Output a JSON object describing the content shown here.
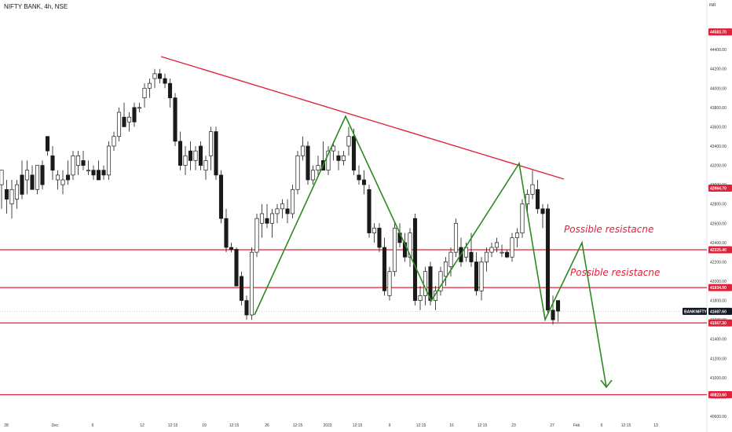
{
  "header": {
    "symbol_title": "NIFTY BANK, 4h, NSE",
    "currency": "INR"
  },
  "colors": {
    "resistance": "#e0213a",
    "pattern": "#2b8a1e",
    "down_candle": "#1a1a1a",
    "up_candle": "#ffffff"
  },
  "chart_data": {
    "type": "candlestick",
    "ylim": [
      40600,
      44800
    ],
    "y_ticks": [
      40600,
      40800,
      41000,
      41200,
      41400,
      41600,
      41800,
      42000,
      42200,
      42400,
      42600,
      42800,
      43000,
      43200,
      43400,
      43600,
      43800,
      44000,
      44200,
      44400,
      44600
    ],
    "x_ticks": [
      "28",
      "Dec",
      "6",
      "12",
      "12:15",
      "19",
      "12:15",
      "26",
      "12:15",
      "2023",
      "12:15",
      "9",
      "12:15",
      "16",
      "12:15",
      "23",
      "27",
      "Feb",
      "6",
      "12:15",
      "13"
    ],
    "level_tags": [
      {
        "label": "44583.70",
        "value": 44583.7
      },
      {
        "label": "42964.70",
        "value": 42964.7
      },
      {
        "label": "42325.40",
        "value": 42325.4
      },
      {
        "label": "41934.00",
        "value": 41934.0
      },
      {
        "label": "41567.30",
        "value": 41567.3
      },
      {
        "label": "40823.60",
        "value": 40823.6
      }
    ],
    "last_price": {
      "symbol": "BANKNIFTY",
      "label": "41687.60",
      "value": 41687.6
    },
    "horizontal_lines": [
      42325.4,
      41934.0,
      41567.3,
      40823.6
    ],
    "trendline": [
      {
        "candle": 30,
        "price": 44210
      },
      {
        "candle": 98,
        "price": 43020
      }
    ],
    "pattern_path": [
      {
        "candle": 45,
        "price": 41580
      },
      {
        "candle": 62,
        "price": 43580
      },
      {
        "candle": 78,
        "price": 41720
      },
      {
        "candle": 93,
        "price": 43120
      },
      {
        "candle": 101,
        "price": 41570
      },
      {
        "candle": 108,
        "price": 42340
      },
      {
        "candle": 114,
        "price": 40840
      }
    ],
    "annotations": [
      "Possible resistacne",
      "Possible resistacne"
    ],
    "candles": [
      {
        "o": 43000,
        "h": 43150,
        "l": 42750,
        "c": 43150
      },
      {
        "o": 42950,
        "h": 43050,
        "l": 42700,
        "c": 42850
      },
      {
        "o": 42800,
        "h": 43050,
        "l": 42650,
        "c": 42950
      },
      {
        "o": 42850,
        "h": 43050,
        "l": 42750,
        "c": 43000
      },
      {
        "o": 43100,
        "h": 43250,
        "l": 42850,
        "c": 42900
      },
      {
        "o": 43050,
        "h": 43250,
        "l": 42900,
        "c": 43150
      },
      {
        "o": 43100,
        "h": 43200,
        "l": 42950,
        "c": 42950
      },
      {
        "o": 42950,
        "h": 43200,
        "l": 42900,
        "c": 43200
      },
      {
        "o": 43200,
        "h": 43250,
        "l": 42950,
        "c": 43000
      },
      {
        "o": 43500,
        "h": 43500,
        "l": 43300,
        "c": 43350
      },
      {
        "o": 43300,
        "h": 43400,
        "l": 43050,
        "c": 43150
      },
      {
        "o": 43050,
        "h": 43150,
        "l": 42950,
        "c": 43100
      },
      {
        "o": 43000,
        "h": 43150,
        "l": 42900,
        "c": 43050
      },
      {
        "o": 43100,
        "h": 43250,
        "l": 43000,
        "c": 43050
      },
      {
        "o": 43100,
        "h": 43350,
        "l": 43050,
        "c": 43300
      },
      {
        "o": 43200,
        "h": 43350,
        "l": 43100,
        "c": 43300
      },
      {
        "o": 43250,
        "h": 43350,
        "l": 43150,
        "c": 43200
      },
      {
        "o": 43150,
        "h": 43250,
        "l": 43100,
        "c": 43150
      },
      {
        "o": 43150,
        "h": 43200,
        "l": 43050,
        "c": 43100
      },
      {
        "o": 43150,
        "h": 43250,
        "l": 43050,
        "c": 43050
      },
      {
        "o": 43150,
        "h": 43200,
        "l": 43050,
        "c": 43100
      },
      {
        "o": 43100,
        "h": 43450,
        "l": 43050,
        "c": 43400
      },
      {
        "o": 43400,
        "h": 43550,
        "l": 43350,
        "c": 43500
      },
      {
        "o": 43500,
        "h": 43800,
        "l": 43450,
        "c": 43750
      },
      {
        "o": 43700,
        "h": 43850,
        "l": 43600,
        "c": 43600
      },
      {
        "o": 43650,
        "h": 43750,
        "l": 43550,
        "c": 43700
      },
      {
        "o": 43800,
        "h": 43850,
        "l": 43600,
        "c": 43650
      },
      {
        "o": 43800,
        "h": 43850,
        "l": 43750,
        "c": 43800
      },
      {
        "o": 43900,
        "h": 44050,
        "l": 43800,
        "c": 44000
      },
      {
        "o": 44000,
        "h": 44100,
        "l": 43900,
        "c": 44050
      },
      {
        "o": 44100,
        "h": 44200,
        "l": 44000,
        "c": 44150
      },
      {
        "o": 44150,
        "h": 44200,
        "l": 44050,
        "c": 44100
      },
      {
        "o": 44100,
        "h": 44150,
        "l": 44000,
        "c": 44050
      },
      {
        "o": 44050,
        "h": 44100,
        "l": 43800,
        "c": 43900
      },
      {
        "o": 43900,
        "h": 43950,
        "l": 43400,
        "c": 43450
      },
      {
        "o": 43450,
        "h": 43550,
        "l": 43150,
        "c": 43200
      },
      {
        "o": 43200,
        "h": 43400,
        "l": 43100,
        "c": 43300
      },
      {
        "o": 43350,
        "h": 43450,
        "l": 43150,
        "c": 43250
      },
      {
        "o": 43250,
        "h": 43400,
        "l": 43150,
        "c": 43350
      },
      {
        "o": 43400,
        "h": 43450,
        "l": 43150,
        "c": 43200
      },
      {
        "o": 43150,
        "h": 43300,
        "l": 43050,
        "c": 43250
      },
      {
        "o": 43300,
        "h": 43600,
        "l": 43150,
        "c": 43550
      },
      {
        "o": 43550,
        "h": 43600,
        "l": 43050,
        "c": 43100
      },
      {
        "o": 43100,
        "h": 43150,
        "l": 42600,
        "c": 42650
      },
      {
        "o": 42650,
        "h": 42750,
        "l": 42300,
        "c": 42350
      },
      {
        "o": 42350,
        "h": 42400,
        "l": 42300,
        "c": 42330
      },
      {
        "o": 42330,
        "h": 42350,
        "l": 41950,
        "c": 41950
      },
      {
        "o": 42050,
        "h": 42100,
        "l": 41750,
        "c": 41800
      },
      {
        "o": 41800,
        "h": 41850,
        "l": 41600,
        "c": 41650
      },
      {
        "o": 41650,
        "h": 42350,
        "l": 41600,
        "c": 42300
      },
      {
        "o": 42300,
        "h": 42700,
        "l": 42250,
        "c": 42650
      },
      {
        "o": 42600,
        "h": 42800,
        "l": 42450,
        "c": 42700
      },
      {
        "o": 42650,
        "h": 42800,
        "l": 42550,
        "c": 42600
      },
      {
        "o": 42600,
        "h": 42750,
        "l": 42450,
        "c": 42700
      },
      {
        "o": 42700,
        "h": 42800,
        "l": 42600,
        "c": 42750
      },
      {
        "o": 42750,
        "h": 42850,
        "l": 42650,
        "c": 42800
      },
      {
        "o": 42750,
        "h": 42850,
        "l": 42600,
        "c": 42700
      },
      {
        "o": 42700,
        "h": 43000,
        "l": 42650,
        "c": 42950
      },
      {
        "o": 42950,
        "h": 43350,
        "l": 42900,
        "c": 43300
      },
      {
        "o": 43300,
        "h": 43500,
        "l": 43250,
        "c": 43400
      },
      {
        "o": 43400,
        "h": 43450,
        "l": 43000,
        "c": 43050
      },
      {
        "o": 43050,
        "h": 43200,
        "l": 43000,
        "c": 43150
      },
      {
        "o": 43150,
        "h": 43300,
        "l": 43100,
        "c": 43200
      },
      {
        "o": 43250,
        "h": 43450,
        "l": 43150,
        "c": 43150
      },
      {
        "o": 43150,
        "h": 43400,
        "l": 43100,
        "c": 43350
      },
      {
        "o": 43350,
        "h": 43450,
        "l": 43250,
        "c": 43400
      },
      {
        "o": 43300,
        "h": 43350,
        "l": 43150,
        "c": 43250
      },
      {
        "o": 43250,
        "h": 43350,
        "l": 43200,
        "c": 43300
      },
      {
        "o": 43400,
        "h": 43600,
        "l": 43300,
        "c": 43500
      },
      {
        "o": 43500,
        "h": 43580,
        "l": 43100,
        "c": 43150
      },
      {
        "o": 43100,
        "h": 43200,
        "l": 43000,
        "c": 43050
      },
      {
        "o": 43050,
        "h": 43150,
        "l": 42900,
        "c": 43000
      },
      {
        "o": 42950,
        "h": 43000,
        "l": 42450,
        "c": 42500
      },
      {
        "o": 42500,
        "h": 42600,
        "l": 42400,
        "c": 42550
      },
      {
        "o": 42550,
        "h": 42600,
        "l": 42300,
        "c": 42350
      },
      {
        "o": 42350,
        "h": 42450,
        "l": 41850,
        "c": 41900
      },
      {
        "o": 41850,
        "h": 42150,
        "l": 41800,
        "c": 42100
      },
      {
        "o": 42100,
        "h": 42600,
        "l": 42050,
        "c": 42550
      },
      {
        "o": 42500,
        "h": 42600,
        "l": 42350,
        "c": 42400
      },
      {
        "o": 42400,
        "h": 42500,
        "l": 42200,
        "c": 42250
      },
      {
        "o": 42250,
        "h": 42550,
        "l": 42150,
        "c": 42500
      },
      {
        "o": 42650,
        "h": 42700,
        "l": 41750,
        "c": 41800
      },
      {
        "o": 41800,
        "h": 41950,
        "l": 41700,
        "c": 41850
      },
      {
        "o": 41850,
        "h": 42150,
        "l": 41750,
        "c": 42100
      },
      {
        "o": 42150,
        "h": 42200,
        "l": 41750,
        "c": 41800
      },
      {
        "o": 41800,
        "h": 41950,
        "l": 41700,
        "c": 41900
      },
      {
        "o": 41900,
        "h": 42150,
        "l": 41850,
        "c": 42100
      },
      {
        "o": 42050,
        "h": 42250,
        "l": 41950,
        "c": 42200
      },
      {
        "o": 42150,
        "h": 42350,
        "l": 42050,
        "c": 42300
      },
      {
        "o": 42300,
        "h": 42650,
        "l": 42250,
        "c": 42600
      },
      {
        "o": 42350,
        "h": 42450,
        "l": 42150,
        "c": 42200
      },
      {
        "o": 42250,
        "h": 42400,
        "l": 42200,
        "c": 42350
      },
      {
        "o": 42300,
        "h": 42500,
        "l": 42150,
        "c": 42200
      },
      {
        "o": 42200,
        "h": 42300,
        "l": 41850,
        "c": 41900
      },
      {
        "o": 41900,
        "h": 42250,
        "l": 41800,
        "c": 42200
      },
      {
        "o": 42200,
        "h": 42350,
        "l": 42100,
        "c": 42300
      },
      {
        "o": 42300,
        "h": 42400,
        "l": 42250,
        "c": 42350
      },
      {
        "o": 42350,
        "h": 42450,
        "l": 42300,
        "c": 42400
      },
      {
        "o": 42300,
        "h": 42380,
        "l": 42250,
        "c": 42300
      },
      {
        "o": 42300,
        "h": 42320,
        "l": 42240,
        "c": 42250
      },
      {
        "o": 42250,
        "h": 42500,
        "l": 42200,
        "c": 42450
      },
      {
        "o": 42450,
        "h": 42550,
        "l": 42350,
        "c": 42500
      },
      {
        "o": 42500,
        "h": 42850,
        "l": 42450,
        "c": 42800
      },
      {
        "o": 42800,
        "h": 42950,
        "l": 42700,
        "c": 42900
      },
      {
        "o": 42900,
        "h": 43150,
        "l": 42850,
        "c": 43000
      },
      {
        "o": 42950,
        "h": 43050,
        "l": 42700,
        "c": 42750
      },
      {
        "o": 42750,
        "h": 42800,
        "l": 42550,
        "c": 42700
      },
      {
        "o": 42750,
        "h": 42800,
        "l": 41650,
        "c": 41700
      },
      {
        "o": 41700,
        "h": 41850,
        "l": 41550,
        "c": 41600
      },
      {
        "o": 41800,
        "h": 41800,
        "l": 41580,
        "c": 41690
      }
    ]
  }
}
